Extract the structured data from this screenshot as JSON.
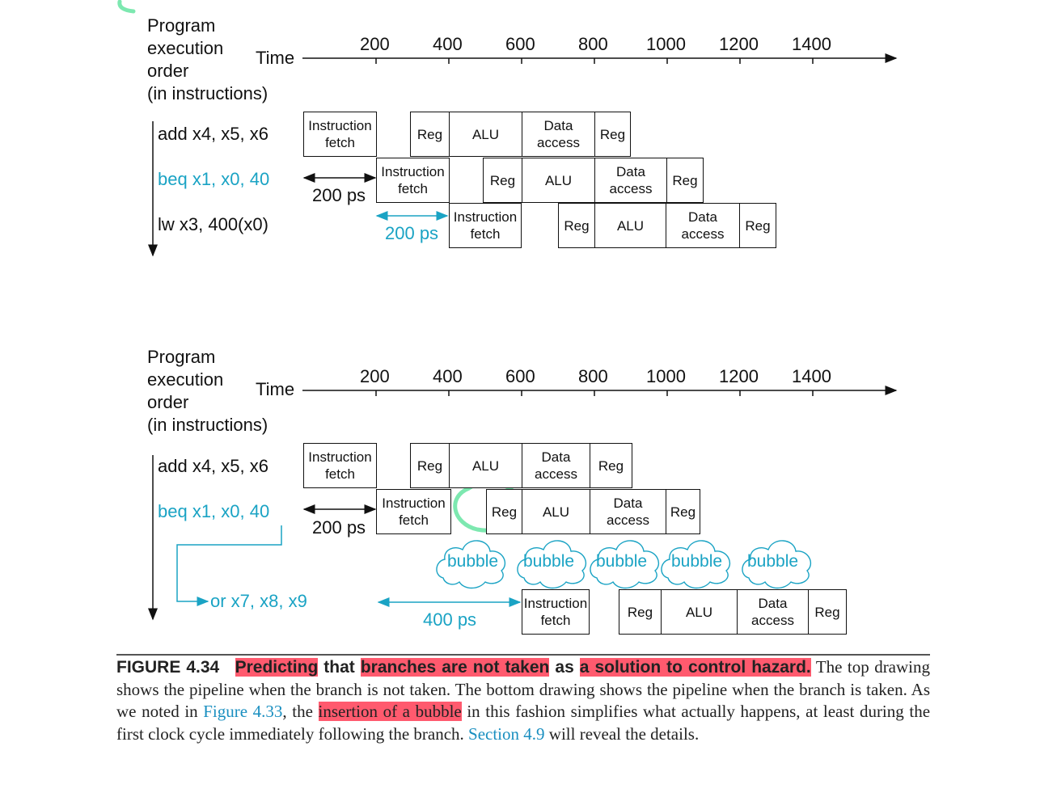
{
  "axis": {
    "program_label": [
      "Program",
      "execution",
      "order",
      "(in instructions)"
    ],
    "time_label": "Time",
    "ticks": [
      "200",
      "400",
      "600",
      "800",
      "1000",
      "1200",
      "1400"
    ]
  },
  "top": {
    "instructions": [
      "add x4, x5, x6",
      "beq x1, x0, 40",
      "lw x3, 400(x0)"
    ],
    "gap1": "200 ps",
    "gap2": "200 ps"
  },
  "bottom": {
    "instructions": [
      "add x4, x5, x6",
      "beq x1, x0, 40",
      "or x7, x8, x9"
    ],
    "gap1": "200 ps",
    "gap2": "400 ps",
    "bubble": "bubble"
  },
  "stages": {
    "if": "Instruction fetch",
    "reg": "Reg",
    "alu": "ALU",
    "dm": "Data access"
  },
  "caption": {
    "figure": "FIGURE 4.34",
    "h1": "Predicting",
    "t1": " that ",
    "h2": "branches are not taken",
    "t2": " as ",
    "h3": "a solution to control hazard.",
    "t3": " The top drawing shows the pipeline when the branch is not taken. The bottom drawing shows the pipeline when the branch is taken. As we noted in ",
    "link1": "Figure 4.33",
    "t4": ", the ",
    "h4": "insertion of a bubble",
    "t5": " in this fashion simplifies what actually happens, at least during the first clock cycle immediately following the branch. ",
    "link2": "Section 4.9",
    "t6": " will reveal the details."
  },
  "colors": {
    "accent": "#1aa3c4",
    "highlight": "#ff5a6e",
    "marker": "#7de8b0"
  }
}
